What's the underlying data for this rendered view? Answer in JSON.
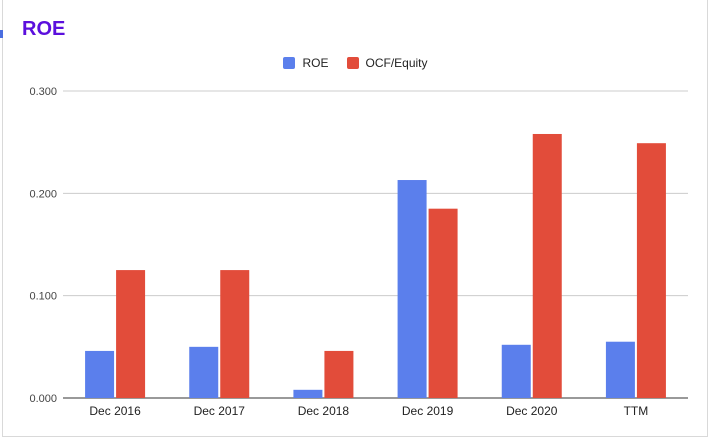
{
  "chart_data": {
    "type": "bar",
    "title": "ROE",
    "categories": [
      "Dec 2016",
      "Dec 2017",
      "Dec 2018",
      "Dec 2019",
      "Dec 2020",
      "TTM"
    ],
    "series": [
      {
        "name": "ROE",
        "color": "#5b7fec",
        "values": [
          0.046,
          0.05,
          0.008,
          0.213,
          0.052,
          0.055
        ]
      },
      {
        "name": "OCF/Equity",
        "color": "#e24c3a",
        "values": [
          0.125,
          0.125,
          0.046,
          0.185,
          0.258,
          0.249
        ]
      }
    ],
    "yticks": [
      "0.000",
      "0.100",
      "0.200",
      "0.300"
    ],
    "ylim": [
      0,
      0.3
    ],
    "xlabel": "",
    "ylabel": "",
    "grid": true,
    "legend": "top-center"
  }
}
